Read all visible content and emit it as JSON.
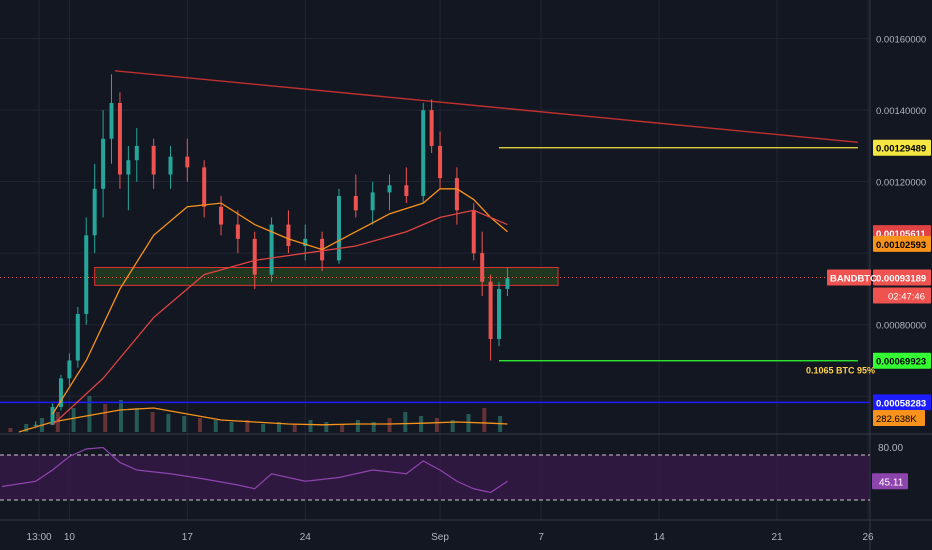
{
  "colors": {
    "background": "#131722",
    "grid": "#222633",
    "candle_up": "#26a69a",
    "candle_down": "#ef5350",
    "ma_fast": "#f7931a",
    "ma_slow": "#e04343",
    "trendline": "#c0302e",
    "resistance": "#f5e642",
    "support": "#33ff33",
    "blue_line": "#1c1cff",
    "zone_border": "#e03131",
    "zone_fill": "#23401f",
    "rsi_line": "#8e44ad",
    "rsi_band": "#3b1a4d",
    "volume_ma": "#f7931a",
    "scale_text": "#b2b5be"
  },
  "chart_data": {
    "type": "candlestick",
    "symbol": "BANDBTC",
    "x_ticks": [
      "13:00",
      "10",
      "17",
      "24",
      "Sep",
      "7",
      "14",
      "21",
      "26"
    ],
    "y_ticks": [
      "0.00160000",
      "0.00140000",
      "0.00120000",
      "0.00080000"
    ],
    "ylim": [
      0.0005,
      0.00168
    ],
    "date_range_days": [
      0,
      30
    ],
    "tick_days": [
      2.2,
      4,
      11,
      18,
      26,
      32,
      39,
      46,
      51.4
    ],
    "candles": [
      [
        2.0,
        0.00052,
        0.00053,
        0.00051,
        0.00052
      ],
      [
        3.0,
        0.00052,
        0.00058,
        0.00052,
        0.00057
      ],
      [
        3.5,
        0.00057,
        0.00066,
        0.00056,
        0.00065
      ],
      [
        4.0,
        0.00065,
        0.00072,
        0.00063,
        0.0007
      ],
      [
        4.5,
        0.0007,
        0.00085,
        0.00068,
        0.00083
      ],
      [
        5.0,
        0.00083,
        0.0011,
        0.0008,
        0.00105
      ],
      [
        5.5,
        0.00105,
        0.00125,
        0.001,
        0.00118
      ],
      [
        6.0,
        0.00118,
        0.0014,
        0.0011,
        0.00132
      ],
      [
        6.5,
        0.00132,
        0.0015,
        0.00125,
        0.00142
      ],
      [
        7.0,
        0.00142,
        0.00145,
        0.00118,
        0.00122
      ],
      [
        7.5,
        0.00122,
        0.0013,
        0.00112,
        0.00126
      ],
      [
        8.0,
        0.00126,
        0.00135,
        0.0012,
        0.0013
      ],
      [
        9.0,
        0.0013,
        0.00132,
        0.00118,
        0.00122
      ],
      [
        10.0,
        0.00122,
        0.0013,
        0.00118,
        0.00127
      ],
      [
        11.0,
        0.00127,
        0.00132,
        0.0012,
        0.00124
      ],
      [
        12.0,
        0.00124,
        0.00126,
        0.0011,
        0.00113
      ],
      [
        13.0,
        0.00113,
        0.00116,
        0.00105,
        0.00108
      ],
      [
        14.0,
        0.00108,
        0.00112,
        0.001,
        0.00104
      ],
      [
        15.0,
        0.00104,
        0.00106,
        0.0009,
        0.00094
      ],
      [
        16.0,
        0.00094,
        0.0011,
        0.00092,
        0.00108
      ],
      [
        17.0,
        0.00108,
        0.00112,
        0.001,
        0.00102
      ],
      [
        18.0,
        0.00102,
        0.00108,
        0.00098,
        0.00104
      ],
      [
        19.0,
        0.00104,
        0.00106,
        0.00095,
        0.00098
      ],
      [
        20.0,
        0.00098,
        0.00118,
        0.00097,
        0.00116
      ],
      [
        21.0,
        0.00116,
        0.00122,
        0.0011,
        0.00112
      ],
      [
        22.0,
        0.00112,
        0.0012,
        0.00108,
        0.00117
      ],
      [
        23.0,
        0.00117,
        0.00122,
        0.00112,
        0.00119
      ],
      [
        24.0,
        0.00119,
        0.00124,
        0.00114,
        0.00116
      ],
      [
        25.0,
        0.00116,
        0.00142,
        0.00114,
        0.0014
      ],
      [
        25.5,
        0.0014,
        0.00143,
        0.00128,
        0.0013
      ],
      [
        26.0,
        0.0013,
        0.00134,
        0.00118,
        0.00121
      ],
      [
        27.0,
        0.00121,
        0.00124,
        0.00108,
        0.00112
      ],
      [
        28.0,
        0.00112,
        0.00114,
        0.00098,
        0.001
      ],
      [
        28.5,
        0.001,
        0.00106,
        0.00088,
        0.00092
      ],
      [
        29.0,
        0.00092,
        0.00094,
        0.0007,
        0.00076
      ],
      [
        29.5,
        0.00076,
        0.00092,
        0.00074,
        0.0009
      ],
      [
        30.0,
        0.0009,
        0.00096,
        0.00088,
        0.00093
      ]
    ],
    "ma_fast": [
      [
        3,
        0.00055
      ],
      [
        5,
        0.0007
      ],
      [
        7,
        0.0009
      ],
      [
        9,
        0.00105
      ],
      [
        11,
        0.00113
      ],
      [
        13,
        0.00114
      ],
      [
        15,
        0.00108
      ],
      [
        17,
        0.00104
      ],
      [
        19,
        0.00101
      ],
      [
        21,
        0.00106
      ],
      [
        23,
        0.00111
      ],
      [
        25,
        0.00114
      ],
      [
        26,
        0.00118
      ],
      [
        27,
        0.00118
      ],
      [
        28,
        0.00115
      ],
      [
        29,
        0.0011
      ],
      [
        30,
        0.00106
      ]
    ],
    "ma_slow": [
      [
        3,
        0.00052
      ],
      [
        6,
        0.00065
      ],
      [
        9,
        0.00082
      ],
      [
        12,
        0.00094
      ],
      [
        15,
        0.00098
      ],
      [
        18,
        0.001
      ],
      [
        21,
        0.00102
      ],
      [
        24,
        0.00106
      ],
      [
        26,
        0.0011
      ],
      [
        28,
        0.00112
      ],
      [
        30,
        0.00108
      ]
    ],
    "trendline": {
      "from": [
        6.7,
        0.00151
      ],
      "to": [
        50.8,
        0.00131
      ]
    },
    "zone": {
      "from_day": 5.5,
      "to_day": 33,
      "top": 0.00096,
      "bottom": 0.00091
    },
    "resistance_line": {
      "from_day": 29.5,
      "to_day": 50.8,
      "value": 0.00129489
    },
    "support_line": {
      "from_day": 29.5,
      "to_day": 50.8,
      "value": 0.00069923
    },
    "blue_line": {
      "value": 0.00058283
    },
    "price_labels": [
      {
        "text": "0.00129489",
        "kind": "resistance",
        "value": 0.00129489
      },
      {
        "text": "0.00105611",
        "kind": "ma_slow",
        "value": 0.00105611
      },
      {
        "text": "0.00102593",
        "kind": "ma_fast",
        "value": 0.00102593
      },
      {
        "text": "0.00093189",
        "kind": "current",
        "value": 0.00093189
      },
      {
        "text": "0.00069923",
        "kind": "support",
        "value": 0.00069923
      },
      {
        "text": "0.00058283",
        "kind": "blue",
        "value": 0.00058283
      }
    ],
    "symbol_label": "BANDBTC",
    "countdown": "02:47:46",
    "annotation": "0.1065 BTC 95%",
    "volume_label": "282.638K",
    "volume_ma": [
      [
        1,
        0.0
      ],
      [
        3,
        0.25
      ],
      [
        5,
        0.4
      ],
      [
        7,
        0.55
      ],
      [
        9,
        0.6
      ],
      [
        11,
        0.45
      ],
      [
        13,
        0.3
      ],
      [
        15,
        0.25
      ],
      [
        17,
        0.2
      ],
      [
        19,
        0.18
      ],
      [
        21,
        0.2
      ],
      [
        23,
        0.2
      ],
      [
        25,
        0.22
      ],
      [
        27,
        0.25
      ],
      [
        29,
        0.22
      ],
      [
        30,
        0.2
      ]
    ],
    "rsi": {
      "upper_label": "80.00",
      "value_label": "45.11",
      "upper": 80,
      "lower": 20,
      "line": [
        [
          0,
          38
        ],
        [
          2,
          45
        ],
        [
          3,
          60
        ],
        [
          4,
          78
        ],
        [
          5,
          88
        ],
        [
          6,
          90
        ],
        [
          7,
          70
        ],
        [
          8,
          60
        ],
        [
          10,
          55
        ],
        [
          12,
          48
        ],
        [
          14,
          40
        ],
        [
          15,
          35
        ],
        [
          16,
          55
        ],
        [
          18,
          45
        ],
        [
          20,
          50
        ],
        [
          22,
          60
        ],
        [
          24,
          55
        ],
        [
          25,
          72
        ],
        [
          26,
          60
        ],
        [
          27,
          45
        ],
        [
          28,
          35
        ],
        [
          29,
          30
        ],
        [
          30,
          45
        ]
      ]
    }
  }
}
